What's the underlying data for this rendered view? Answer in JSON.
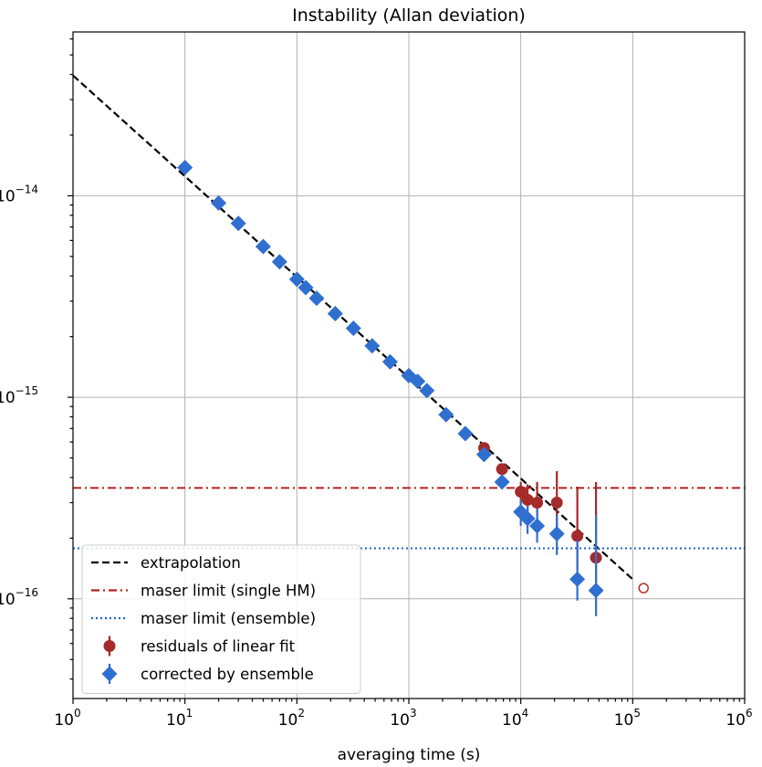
{
  "chart_data": {
    "type": "scatter",
    "title": "Instability (Allan deviation)",
    "xlabel": "averaging time (s)",
    "ylabel": "",
    "xscale": "log",
    "yscale": "log",
    "xlim": [
      1,
      1000000
    ],
    "ylim": [
      3.2e-17,
      6.5e-14
    ],
    "grid": true,
    "legend_position": "bottom-left",
    "x_ticks": [
      {
        "base": "10",
        "exp": "0",
        "value": 1
      },
      {
        "base": "10",
        "exp": "1",
        "value": 10
      },
      {
        "base": "10",
        "exp": "2",
        "value": 100
      },
      {
        "base": "10",
        "exp": "3",
        "value": 1000
      },
      {
        "base": "10",
        "exp": "4",
        "value": 10000
      },
      {
        "base": "10",
        "exp": "5",
        "value": 100000
      },
      {
        "base": "10",
        "exp": "6",
        "value": 1000000
      }
    ],
    "y_ticks": [
      {
        "base": "10",
        "exp": "−16",
        "value": 1e-16
      },
      {
        "base": "10",
        "exp": "−15",
        "value": 1e-15
      },
      {
        "base": "10",
        "exp": "−14",
        "value": 1e-14
      }
    ],
    "series": [
      {
        "name": "extrapolation",
        "kind": "line",
        "style": "dashed",
        "color": "#000000",
        "x": [
          1,
          100000
        ],
        "y": [
          3.95e-14,
          1.25e-16
        ]
      },
      {
        "name": "maser limit (single HM)",
        "kind": "hline",
        "style": "dashdot",
        "color": "#b22222",
        "y": 3.55e-16
      },
      {
        "name": "maser limit (ensemble)",
        "kind": "hline",
        "style": "dotted",
        "color": "#1f5fc8",
        "y": 1.78e-16
      },
      {
        "name": "residuals of linear fit",
        "kind": "errorbar",
        "marker": "circle",
        "color": "#a52a2a",
        "x": [
          4700,
          6800,
          10000,
          11500,
          14000,
          21000,
          32000,
          47000
        ],
        "y": [
          5.6e-16,
          4.4e-16,
          3.4e-16,
          3.1e-16,
          3e-16,
          3e-16,
          2.05e-16,
          1.6e-16
        ],
        "yerr_low": [
          5.3e-16,
          4.2e-16,
          2.9e-16,
          2.6e-16,
          2.4e-16,
          2.2e-16,
          1.4e-16,
          1.1e-16
        ],
        "yerr_high": [
          5.9e-16,
          4.6e-16,
          3.8e-16,
          3.7e-16,
          3.8e-16,
          4.3e-16,
          3.6e-16,
          3.8e-16
        ]
      },
      {
        "name": "corrected by ensemble",
        "kind": "errorbar",
        "marker": "diamond",
        "color": "#2f6fd0",
        "x": [
          10,
          20,
          30,
          50,
          70,
          100,
          120,
          150,
          220,
          320,
          470,
          680,
          1000,
          1200,
          1450,
          2150,
          3200,
          4700,
          6800,
          10000,
          11500,
          14000,
          21000,
          32000,
          47000
        ],
        "y": [
          1.38e-14,
          9.2e-15,
          7.3e-15,
          5.6e-15,
          4.7e-15,
          3.85e-15,
          3.5e-15,
          3.1e-15,
          2.6e-15,
          2.2e-15,
          1.8e-15,
          1.5e-15,
          1.28e-15,
          1.2e-15,
          1.08e-15,
          8.2e-16,
          6.6e-16,
          5.2e-16,
          3.8e-16,
          2.7e-16,
          2.5e-16,
          2.3e-16,
          2.1e-16,
          1.25e-16,
          1.1e-16
        ],
        "yerr_low": [
          null,
          null,
          null,
          null,
          null,
          null,
          null,
          null,
          null,
          null,
          null,
          null,
          null,
          null,
          null,
          null,
          null,
          5e-16,
          3.6e-16,
          2.3e-16,
          2.1e-16,
          1.9e-16,
          1.65e-16,
          9.8e-17,
          8.2e-17
        ],
        "yerr_high": [
          null,
          null,
          null,
          null,
          null,
          null,
          null,
          null,
          null,
          null,
          null,
          null,
          null,
          null,
          null,
          null,
          null,
          5.4e-16,
          4e-16,
          3.1e-16,
          2.9e-16,
          2.8e-16,
          2.6e-16,
          1.95e-16,
          2.6e-16
        ]
      },
      {
        "name": "",
        "kind": "marker",
        "marker": "open-circle",
        "color": "#b22222",
        "x": [
          125000
        ],
        "y": [
          1.13e-16
        ]
      }
    ]
  }
}
